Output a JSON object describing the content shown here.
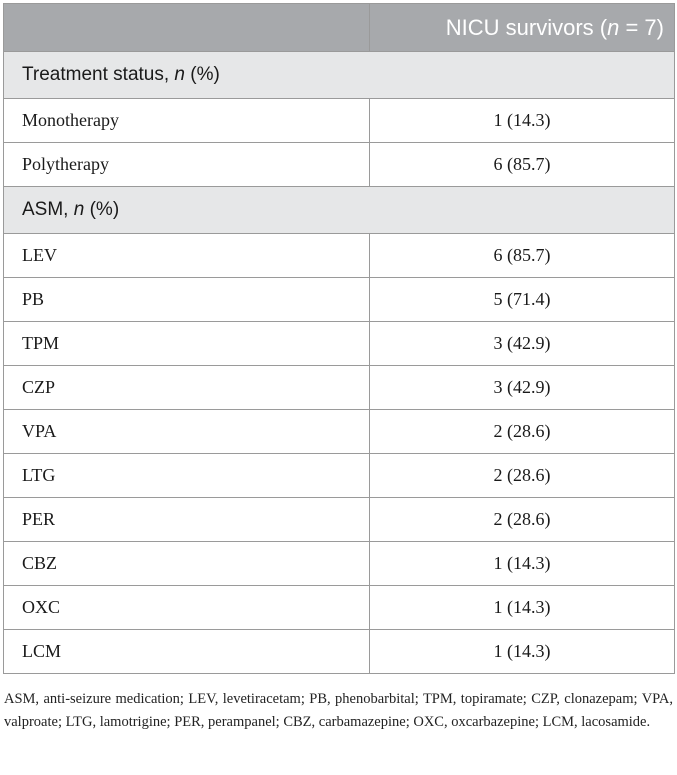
{
  "header": {
    "col1": "",
    "col2_prefix": "NICU survivors (",
    "col2_italic": "n",
    "col2_suffix": " = 7)"
  },
  "sections": [
    {
      "title_prefix": "Treatment status, ",
      "title_italic": "n",
      "title_suffix": " (%)",
      "rows": [
        {
          "label": "Monotherapy",
          "value": "1 (14.3)"
        },
        {
          "label": "Polytherapy",
          "value": "6 (85.7)"
        }
      ]
    },
    {
      "title_prefix": "ASM, ",
      "title_italic": "n",
      "title_suffix": " (%)",
      "rows": [
        {
          "label": "LEV",
          "value": "6 (85.7)"
        },
        {
          "label": "PB",
          "value": "5 (71.4)"
        },
        {
          "label": "TPM",
          "value": "3 (42.9)"
        },
        {
          "label": "CZP",
          "value": "3 (42.9)"
        },
        {
          "label": "VPA",
          "value": "2 (28.6)"
        },
        {
          "label": "LTG",
          "value": "2 (28.6)"
        },
        {
          "label": "PER",
          "value": "2 (28.6)"
        },
        {
          "label": "CBZ",
          "value": "1 (14.3)"
        },
        {
          "label": "OXC",
          "value": "1 (14.3)"
        },
        {
          "label": "LCM",
          "value": "1 (14.3)"
        }
      ]
    }
  ],
  "footnote": "ASM, anti-seizure medication; LEV, levetiracetam; PB, phenobarbital; TPM, topiramate; CZP, clonazepam; VPA, valproate; LTG, lamotrigine; PER, perampanel; CBZ, carbamazepine; OXC, oxcarbazepine; LCM, lacosamide."
}
